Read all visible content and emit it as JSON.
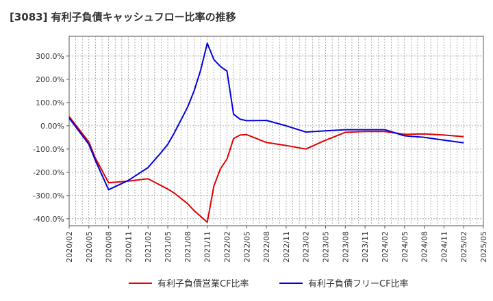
{
  "title": "[3083]  有利子負債キャッシュフロー比率の推移",
  "chart_data": {
    "type": "line",
    "x": [
      "2020/02",
      "2020/05",
      "2020/08",
      "2020/11",
      "2021/02",
      "2021/05",
      "2021/08",
      "2021/11",
      "2022/02",
      "2022/05",
      "2022/08",
      "2022/11",
      "2023/02",
      "2023/05",
      "2023/08",
      "2023/11",
      "2024/02",
      "2024/05",
      "2024/08",
      "2024/11",
      "2025/02",
      "2025/05"
    ],
    "xlabel": "",
    "ylabel": "",
    "ylim": [
      -430,
      385
    ],
    "yticks": [
      300,
      200,
      100,
      0,
      -100,
      -200,
      -300,
      -400
    ],
    "ytick_labels": [
      "300.0%",
      "200.0%",
      "100.0%",
      "0.00%",
      "-100.0%",
      "-200.0%",
      "-300.0%",
      "-400.0%"
    ],
    "grid": true,
    "legend_position": "bottom",
    "series": [
      {
        "name": "有利子負債営業CF比率",
        "color": "#e00000",
        "points": [
          [
            "2020/02",
            40
          ],
          [
            "2020/05",
            -70
          ],
          [
            "2020/06",
            -140
          ],
          [
            "2020/08",
            -245
          ],
          [
            "2020/11",
            -238
          ],
          [
            "2021/02",
            -228
          ],
          [
            "2021/03",
            -243
          ],
          [
            "2021/05",
            -272
          ],
          [
            "2021/06",
            -290
          ],
          [
            "2021/08",
            -335
          ],
          [
            "2021/09",
            -365
          ],
          [
            "2021/11",
            -415
          ],
          [
            "2021/12",
            -260
          ],
          [
            "2022/01",
            -185
          ],
          [
            "2022/02",
            -143
          ],
          [
            "2022/03",
            -55
          ],
          [
            "2022/04",
            -40
          ],
          [
            "2022/05",
            -38
          ],
          [
            "2022/08",
            -72
          ],
          [
            "2022/11",
            -85
          ],
          [
            "2023/02",
            -100
          ],
          [
            "2023/05",
            -62
          ],
          [
            "2023/08",
            -28
          ],
          [
            "2023/11",
            -25
          ],
          [
            "2024/02",
            -25
          ],
          [
            "2024/05",
            -37
          ],
          [
            "2024/08",
            -35
          ],
          [
            "2024/11",
            -40
          ],
          [
            "2025/02",
            -47
          ]
        ]
      },
      {
        "name": "有利子負債フリーCF比率",
        "color": "#0000e0",
        "points": [
          [
            "2020/02",
            33
          ],
          [
            "2020/05",
            -80
          ],
          [
            "2020/06",
            -150
          ],
          [
            "2020/08",
            -275
          ],
          [
            "2020/11",
            -235
          ],
          [
            "2021/02",
            -180
          ],
          [
            "2021/03",
            -147
          ],
          [
            "2021/04",
            -115
          ],
          [
            "2021/05",
            -80
          ],
          [
            "2021/06",
            -30
          ],
          [
            "2021/07",
            25
          ],
          [
            "2021/08",
            80
          ],
          [
            "2021/09",
            150
          ],
          [
            "2021/10",
            240
          ],
          [
            "2021/11",
            355
          ],
          [
            "2021/12",
            285
          ],
          [
            "2022/01",
            255
          ],
          [
            "2022/02",
            235
          ],
          [
            "2022/03",
            50
          ],
          [
            "2022/04",
            28
          ],
          [
            "2022/05",
            22
          ],
          [
            "2022/08",
            23
          ],
          [
            "2022/11",
            0
          ],
          [
            "2023/02",
            -27
          ],
          [
            "2023/05",
            -22
          ],
          [
            "2023/08",
            -17
          ],
          [
            "2023/11",
            -17
          ],
          [
            "2024/02",
            -17
          ],
          [
            "2024/05",
            -43
          ],
          [
            "2024/08",
            -50
          ],
          [
            "2024/11",
            -62
          ],
          [
            "2025/02",
            -73
          ]
        ]
      }
    ]
  }
}
